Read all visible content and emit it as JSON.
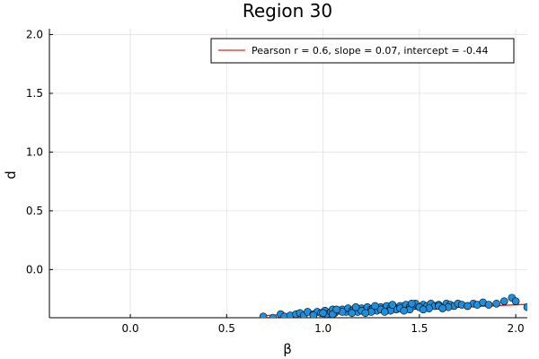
{
  "chart_data": {
    "type": "scatter",
    "title": "Region 30",
    "xlabel": "β",
    "ylabel": "d",
    "xlim": [
      -0.42,
      2.06
    ],
    "ylim": [
      -0.41,
      2.05
    ],
    "xticks": [
      0.0,
      0.5,
      1.0,
      1.5,
      2.0
    ],
    "xtick_labels": [
      "0.0",
      "0.5",
      "1.0",
      "1.5",
      "2.0"
    ],
    "yticks": [
      0.0,
      0.5,
      1.0,
      1.5,
      2.0
    ],
    "ytick_labels": [
      "0.0",
      "0.5",
      "1.0",
      "1.5",
      "2.0"
    ],
    "grid": true,
    "legend_position": "top-right",
    "colors": {
      "points": "#1f8fdc",
      "point_edge": "#000000",
      "fit_line": "#e0281e"
    },
    "fit_line": {
      "label": "Pearson r = 0.6, slope = 0.07, intercept = -0.44",
      "slope": 0.07,
      "intercept": -0.44
    },
    "points": {
      "x": [
        0.69,
        0.74,
        0.78,
        0.8,
        0.83,
        0.86,
        0.88,
        0.9,
        0.92,
        0.95,
        0.97,
        0.99,
        1.01,
        1.02,
        1.04,
        1.05,
        1.06,
        1.08,
        1.1,
        1.12,
        1.13,
        1.15,
        1.16,
        1.18,
        1.2,
        1.21,
        1.23,
        1.25,
        1.26,
        1.28,
        1.3,
        1.31,
        1.33,
        1.35,
        1.37,
        1.38,
        1.4,
        1.42,
        1.43,
        1.45,
        1.47,
        1.48,
        1.5,
        1.52,
        1.54,
        1.56,
        1.58,
        1.6,
        1.62,
        1.64,
        1.66,
        1.68,
        1.7,
        1.72,
        1.75,
        1.78,
        1.8,
        1.83,
        1.86,
        1.9,
        1.94,
        1.98,
        2.0,
        2.06,
        1.0,
        1.1,
        1.2,
        1.3,
        1.4,
        1.5,
        1.6,
        1.15,
        1.25,
        1.35,
        1.45,
        1.55,
        1.65,
        1.75,
        0.95,
        1.05,
        1.22,
        1.32,
        1.42,
        1.52,
        1.62,
        1.36,
        1.46,
        1.27,
        1.17,
        1.07
      ],
      "y": [
        -0.4,
        -0.41,
        -0.38,
        -0.4,
        -0.39,
        -0.38,
        -0.37,
        -0.39,
        -0.36,
        -0.38,
        -0.36,
        -0.37,
        -0.35,
        -0.38,
        -0.36,
        -0.34,
        -0.37,
        -0.35,
        -0.34,
        -0.36,
        -0.33,
        -0.35,
        -0.34,
        -0.36,
        -0.33,
        -0.35,
        -0.32,
        -0.34,
        -0.33,
        -0.35,
        -0.32,
        -0.34,
        -0.31,
        -0.33,
        -0.32,
        -0.34,
        -0.31,
        -0.33,
        -0.3,
        -0.32,
        -0.31,
        -0.29,
        -0.32,
        -0.3,
        -0.31,
        -0.29,
        -0.31,
        -0.3,
        -0.32,
        -0.29,
        -0.3,
        -0.31,
        -0.29,
        -0.3,
        -0.31,
        -0.29,
        -0.3,
        -0.28,
        -0.3,
        -0.29,
        -0.27,
        -0.24,
        -0.27,
        -0.32,
        -0.37,
        -0.36,
        -0.35,
        -0.34,
        -0.33,
        -0.32,
        -0.31,
        -0.37,
        -0.36,
        -0.35,
        -0.34,
        -0.33,
        -0.32,
        -0.31,
        -0.39,
        -0.38,
        -0.37,
        -0.36,
        -0.35,
        -0.34,
        -0.33,
        -0.3,
        -0.29,
        -0.31,
        -0.32,
        -0.34
      ]
    }
  }
}
